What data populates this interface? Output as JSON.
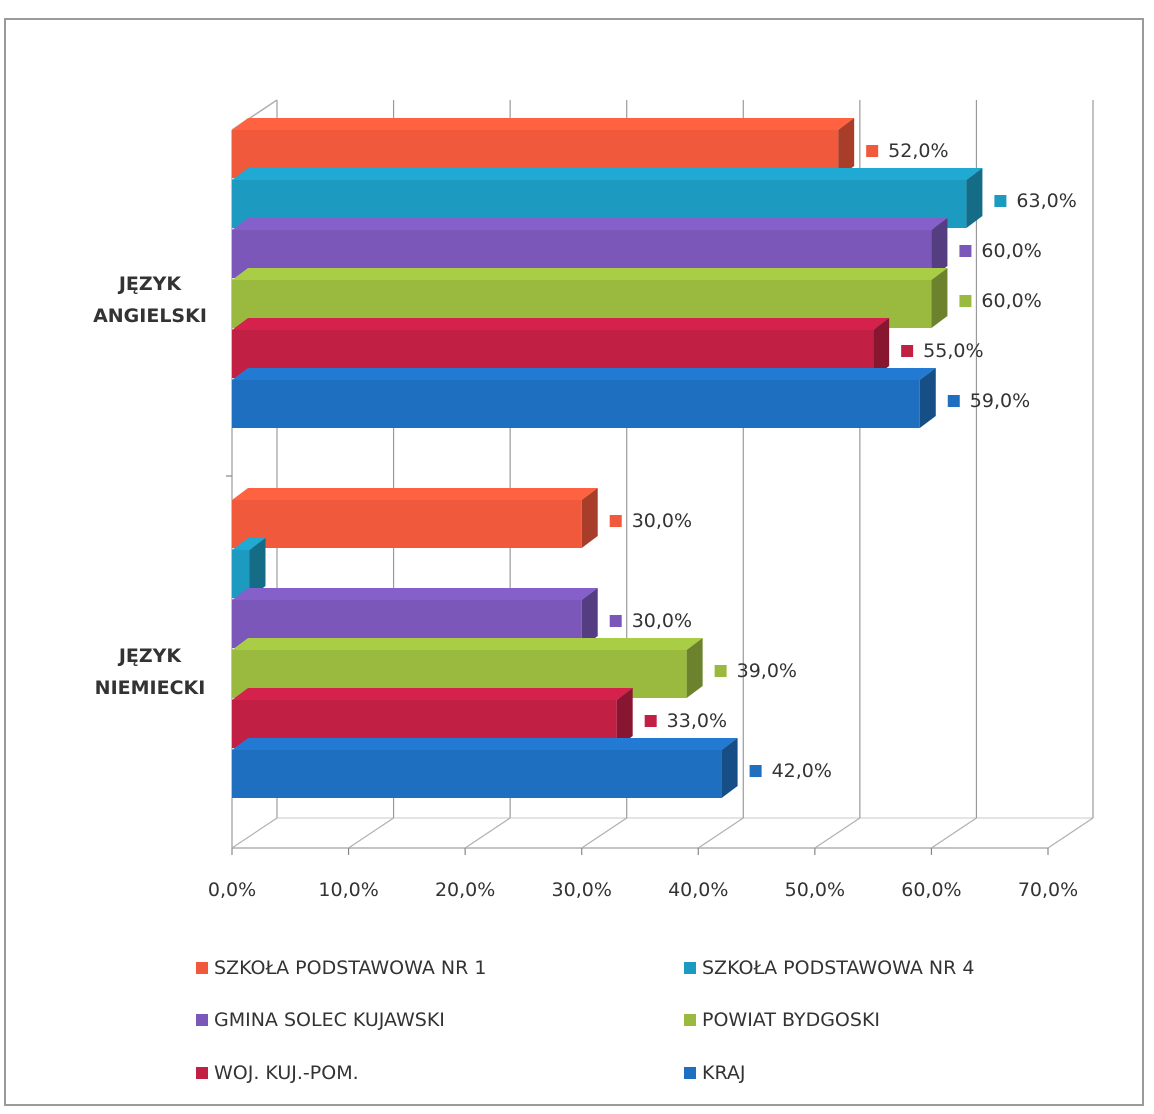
{
  "chart_data": {
    "type": "bar",
    "orientation": "horizontal",
    "style": "3d",
    "categories": [
      "JĘZYK ANGIELSKI",
      "JĘZYK NIEMIECKI"
    ],
    "category_lines": [
      [
        "JĘZYK",
        "ANGIELSKI"
      ],
      [
        "JĘZYK",
        "NIEMIECKI"
      ]
    ],
    "series": [
      {
        "name": "SZKOŁA PODSTAWOWA NR 1",
        "color": "#f0593b",
        "values": [
          52.0,
          30.0
        ],
        "labels": [
          "52,0%",
          "30,0%"
        ]
      },
      {
        "name": "SZKOŁA PODSTAWOWA NR 4",
        "color": "#1c9ac0",
        "values": [
          63.0,
          1.5
        ],
        "labels": [
          "63,0%",
          ""
        ]
      },
      {
        "name": "GMINA SOLEC KUJAWSKI",
        "color": "#7a57b8",
        "values": [
          60.0,
          30.0
        ],
        "labels": [
          "60,0%",
          "30,0%"
        ]
      },
      {
        "name": "POWIAT BYDGOSKI",
        "color": "#9aba3f",
        "values": [
          60.0,
          39.0
        ],
        "labels": [
          "60,0%",
          "39,0%"
        ]
      },
      {
        "name": "WOJ. KUJ.-POM.",
        "color": "#c21f45",
        "values": [
          55.0,
          33.0
        ],
        "labels": [
          "55,0%",
          "33,0%"
        ]
      },
      {
        "name": "KRAJ",
        "color": "#1f6fc0",
        "values": [
          59.0,
          42.0
        ],
        "labels": [
          "59,0%",
          "42,0%"
        ]
      }
    ],
    "xlim": [
      0,
      70
    ],
    "xticks": [
      "0,0%",
      "10,0%",
      "20,0%",
      "30,0%",
      "40,0%",
      "50,0%",
      "60,0%",
      "70,0%"
    ],
    "grid": true,
    "legend": "bottom"
  }
}
